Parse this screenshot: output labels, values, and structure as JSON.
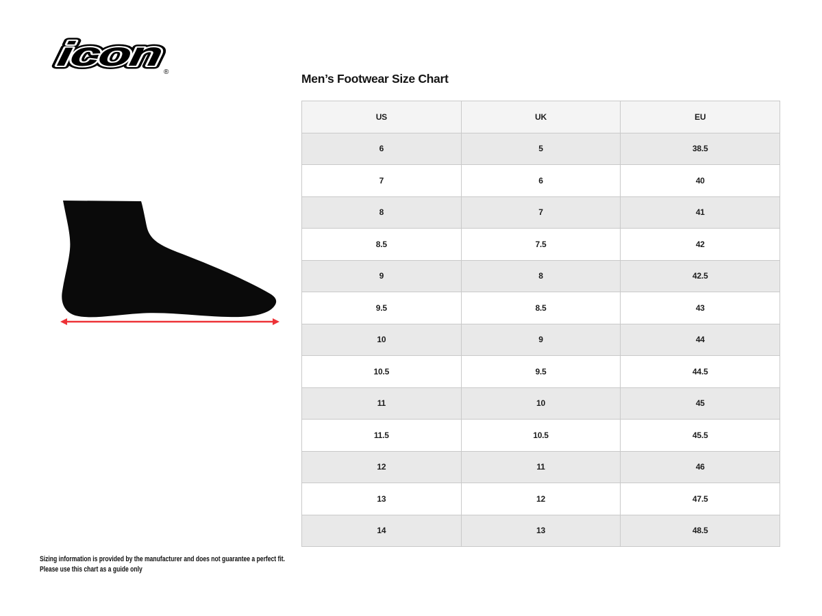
{
  "brand": {
    "logo_text": "icon",
    "registered_mark": "®"
  },
  "title": "Men’s Footwear Size Chart",
  "size_table": {
    "headers": [
      "US",
      "UK",
      "EU"
    ],
    "rows": [
      [
        "6",
        "5",
        "38.5"
      ],
      [
        "7",
        "6",
        "40"
      ],
      [
        "8",
        "7",
        "41"
      ],
      [
        "8.5",
        "7.5",
        "42"
      ],
      [
        "9",
        "8",
        "42.5"
      ],
      [
        "9.5",
        "8.5",
        "43"
      ],
      [
        "10",
        "9",
        "44"
      ],
      [
        "10.5",
        "9.5",
        "44.5"
      ],
      [
        "11",
        "10",
        "45"
      ],
      [
        "11.5",
        "10.5",
        "45.5"
      ],
      [
        "12",
        "11",
        "46"
      ],
      [
        "13",
        "12",
        "47.5"
      ],
      [
        "14",
        "13",
        "48.5"
      ]
    ]
  },
  "diagram": {
    "label": "foot-length-measurement",
    "silhouette_color": "#0a0a0a",
    "arrow_color": "#ed3237"
  },
  "footnote": {
    "line1": "Sizing information is provided by the manufacturer and does not guarantee a perfect fit.",
    "line2": "Please use this chart as a guide only"
  },
  "colors": {
    "header_bg": "#f4f4f4",
    "row_alt_bg": "#e9e9e9",
    "border": "#c9c9c9",
    "text": "#1c1c1c"
  }
}
